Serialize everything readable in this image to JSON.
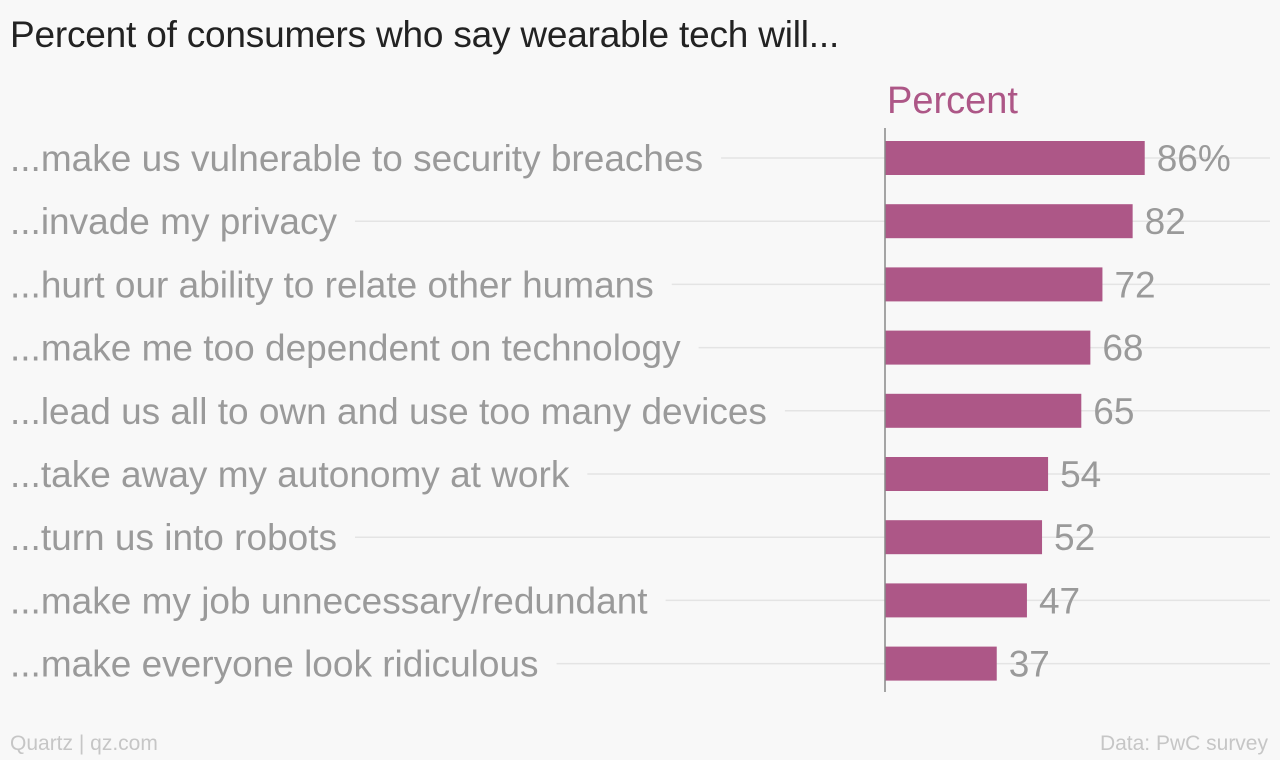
{
  "title": "Percent of consumers who say wearable tech will...",
  "footer": {
    "credit": "Quartz | qz.com",
    "source": "Data: PwC survey"
  },
  "colors": {
    "bar": "#ad5787",
    "header": "#ad5787",
    "label": "#9a9a9a",
    "gridline": "#e4e4e4",
    "axis": "#888888"
  },
  "chart_data": {
    "type": "bar",
    "orientation": "horizontal",
    "column_header": "Percent",
    "categories": [
      "...make us vulnerable to security breaches",
      "...invade my privacy",
      "...hurt our ability to relate other humans",
      "...make me too dependent on technology",
      "...lead us all to own and use too many devices",
      "...take away my autonomy at work",
      "...turn us into robots",
      "...make my job unnecessary/redundant",
      "...make everyone look ridiculous"
    ],
    "values": [
      86,
      82,
      72,
      68,
      65,
      54,
      52,
      47,
      37
    ],
    "value_labels": [
      "86%",
      "82",
      "72",
      "68",
      "65",
      "54",
      "52",
      "47",
      "37"
    ],
    "xlim": [
      0,
      100
    ],
    "grid": false
  }
}
